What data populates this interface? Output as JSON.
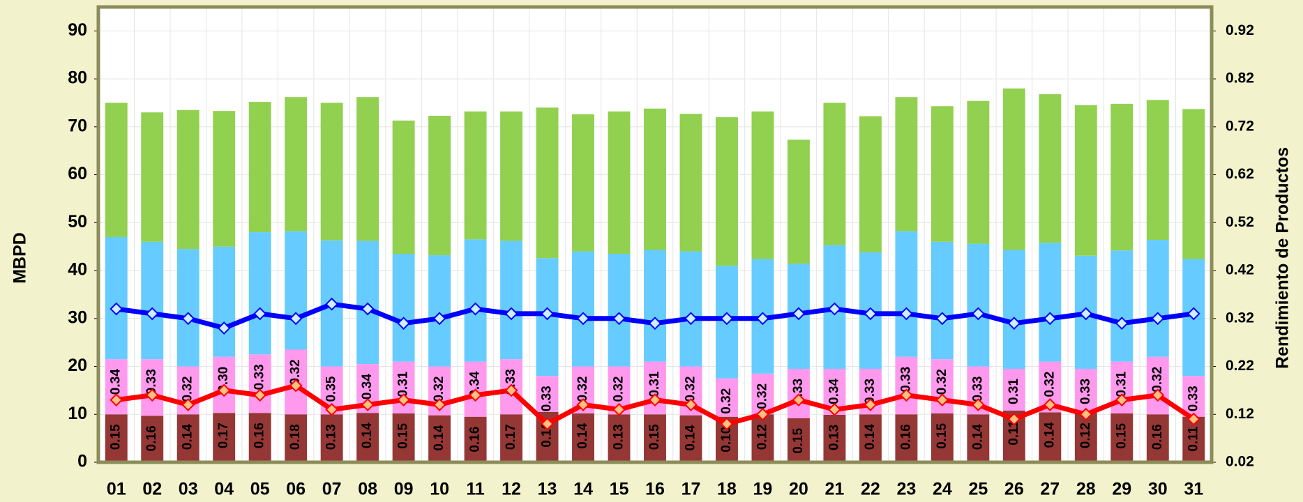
{
  "chart_data": {
    "type": "stacked_bar_line",
    "categories": [
      "01",
      "02",
      "03",
      "04",
      "05",
      "06",
      "07",
      "08",
      "09",
      "10",
      "11",
      "12",
      "13",
      "14",
      "15",
      "16",
      "17",
      "18",
      "19",
      "20",
      "21",
      "22",
      "23",
      "24",
      "25",
      "26",
      "27",
      "28",
      "29",
      "30",
      "31"
    ],
    "ylabel": "MBPD",
    "y2label": "Rendimiento de Productos",
    "ylim": [
      0,
      95
    ],
    "yticks": [
      0,
      10,
      20,
      30,
      40,
      50,
      60,
      70,
      80,
      90
    ],
    "y2lim": [
      0.02,
      0.97
    ],
    "y2ticks": [
      0.02,
      0.12,
      0.22,
      0.32,
      0.42,
      0.52,
      0.62,
      0.72,
      0.82,
      0.92
    ],
    "grid": true,
    "series": [
      {
        "color": "#953735",
        "values": [
          10,
          9.7,
          10,
          10.3,
          10.3,
          10,
          10,
          10.3,
          10.2,
          9.8,
          9.5,
          10,
          10.5,
          10.2,
          10,
          10,
          9.8,
          9.5,
          10,
          9.2,
          9.9,
          10,
          10,
          10.2,
          10,
          10.8,
          10.4,
          10.3,
          10.2,
          10,
          9.5
        ]
      },
      {
        "color": "#ff99ee",
        "values": [
          11.5,
          11.8,
          10,
          11.7,
          12.2,
          13.5,
          10,
          10.2,
          10.8,
          10.2,
          11.5,
          11.5,
          7.5,
          9.8,
          10,
          11,
          10.2,
          8,
          8.5,
          10.3,
          9.6,
          9.5,
          12,
          11.3,
          10,
          8.7,
          10.6,
          9.2,
          10.8,
          12,
          8.5
        ]
      },
      {
        "color": "#66ccff",
        "values": [
          25.5,
          24.5,
          24.5,
          23,
          25.5,
          24.7,
          26.3,
          25.7,
          22.5,
          23.2,
          25.5,
          24.7,
          24.6,
          24,
          23.5,
          23.3,
          24,
          23.5,
          23.9,
          21.9,
          25.8,
          24.3,
          26.2,
          24.5,
          25.6,
          24.8,
          24.8,
          23.6,
          23.2,
          24.4,
          24.4
        ]
      },
      {
        "color": "#92d050",
        "values": [
          28,
          27,
          29,
          28.3,
          27.2,
          28,
          28.7,
          30,
          27.8,
          29.1,
          26.7,
          27,
          31.4,
          28.6,
          29.7,
          29.5,
          28.7,
          31,
          30.8,
          25.9,
          29.7,
          28.4,
          28,
          28.3,
          29.8,
          33.7,
          31,
          31.4,
          30.6,
          29.2,
          31.3
        ]
      },
      {
        "color": "#0000ff",
        "marker_fill": "#cceeff",
        "axis": "y2",
        "values": [
          0.34,
          0.33,
          0.32,
          0.3,
          0.33,
          0.32,
          0.35,
          0.34,
          0.31,
          0.32,
          0.34,
          0.33,
          0.33,
          0.32,
          0.32,
          0.31,
          0.32,
          0.32,
          0.32,
          0.33,
          0.34,
          0.33,
          0.33,
          0.32,
          0.33,
          0.31,
          0.32,
          0.33,
          0.31,
          0.32,
          0.33
        ],
        "value_labels": [
          "0.34",
          "0.33",
          "0.32",
          "0.30",
          "0.33",
          "0.32",
          "0.35",
          "0.34",
          "0.31",
          "0.32",
          "0.34",
          "0.33",
          "0.33",
          "0.32",
          "0.32",
          "0.31",
          "0.32",
          "0.32",
          "0.32",
          "0.33",
          "0.34",
          "0.33",
          "0.33",
          "0.32",
          "0.33",
          "0.31",
          "0.32",
          "0.33",
          "0.31",
          "0.32",
          "0.33"
        ]
      },
      {
        "color": "#ff0000",
        "marker_fill": "#ffc080",
        "axis": "y2",
        "values": [
          0.15,
          0.16,
          0.14,
          0.17,
          0.16,
          0.18,
          0.13,
          0.14,
          0.15,
          0.14,
          0.16,
          0.17,
          0.1,
          0.14,
          0.13,
          0.15,
          0.14,
          0.1,
          0.12,
          0.15,
          0.13,
          0.14,
          0.16,
          0.15,
          0.14,
          0.11,
          0.14,
          0.12,
          0.15,
          0.16,
          0.11
        ],
        "value_labels": [
          "0.15",
          "0.16",
          "0.14",
          "0.17",
          "0.16",
          "0.18",
          "0.13",
          "0.14",
          "0.15",
          "0.14",
          "0.16",
          "0.17",
          "0.10",
          "0.14",
          "0.13",
          "0.15",
          "0.14",
          "0.10",
          "0.12",
          "0.15",
          "0.13",
          "0.14",
          "0.16",
          "0.15",
          "0.14",
          "0.11",
          "0.14",
          "0.12",
          "0.15",
          "0.16",
          "0.11"
        ]
      }
    ]
  }
}
